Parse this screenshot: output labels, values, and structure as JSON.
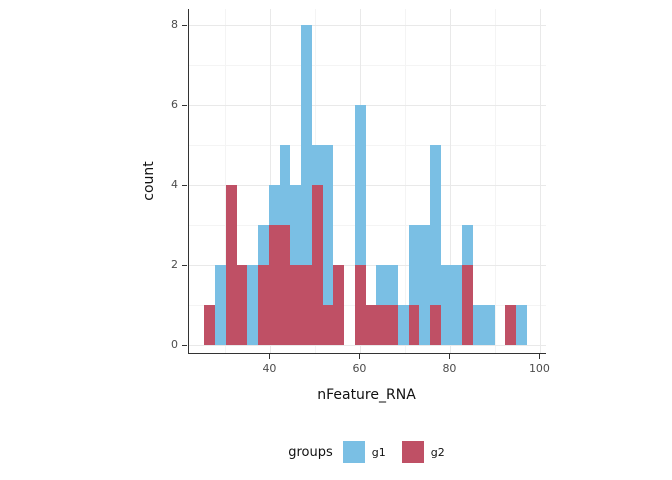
{
  "figure": {
    "xlabel": "nFeature_RNA",
    "ylabel": "count"
  },
  "legend": {
    "title": "groups",
    "entries": [
      {
        "label": "g1",
        "color": "#7ABFE4"
      },
      {
        "label": "g2",
        "color": "#BF5065"
      }
    ]
  },
  "chart_data": {
    "type": "bar",
    "subtype": "overlaid-histogram",
    "title": "",
    "xlabel": "nFeature_RNA",
    "ylabel": "count",
    "legend_title": "groups",
    "legend_position": "bottom",
    "grid": true,
    "draw_order_note": "g2 bars drawn on top of g1 bars (position identity)",
    "bins": 30,
    "bin_start": 25.3,
    "bin_width": 2.39,
    "xlim": [
      21.9,
      101.2
    ],
    "ylim": [
      0,
      8.4
    ],
    "x_ticks": [
      40,
      60,
      80,
      100
    ],
    "x_tick_labels": [
      "40",
      "60",
      "80",
      "100"
    ],
    "x_minor_ticks": [
      30,
      50,
      70,
      90
    ],
    "y_ticks": [
      0,
      2,
      4,
      6,
      8
    ],
    "y_tick_labels": [
      "0",
      "2",
      "4",
      "6",
      "8"
    ],
    "y_minor_ticks": [
      1,
      3,
      5,
      7
    ],
    "series": [
      {
        "name": "g1",
        "color": "#7ABFE4",
        "counts": [
          0,
          2,
          0,
          0,
          2,
          3,
          4,
          5,
          4,
          8,
          5,
          5,
          0,
          0,
          6,
          0,
          2,
          2,
          1,
          3,
          3,
          5,
          2,
          2,
          3,
          1,
          1,
          0,
          0,
          1
        ]
      },
      {
        "name": "g2",
        "color": "#BF5065",
        "counts": [
          1,
          0,
          4,
          2,
          0,
          2,
          3,
          3,
          2,
          2,
          4,
          1,
          2,
          0,
          2,
          1,
          1,
          1,
          0,
          1,
          0,
          1,
          0,
          0,
          2,
          0,
          0,
          0,
          1,
          0
        ]
      }
    ]
  }
}
